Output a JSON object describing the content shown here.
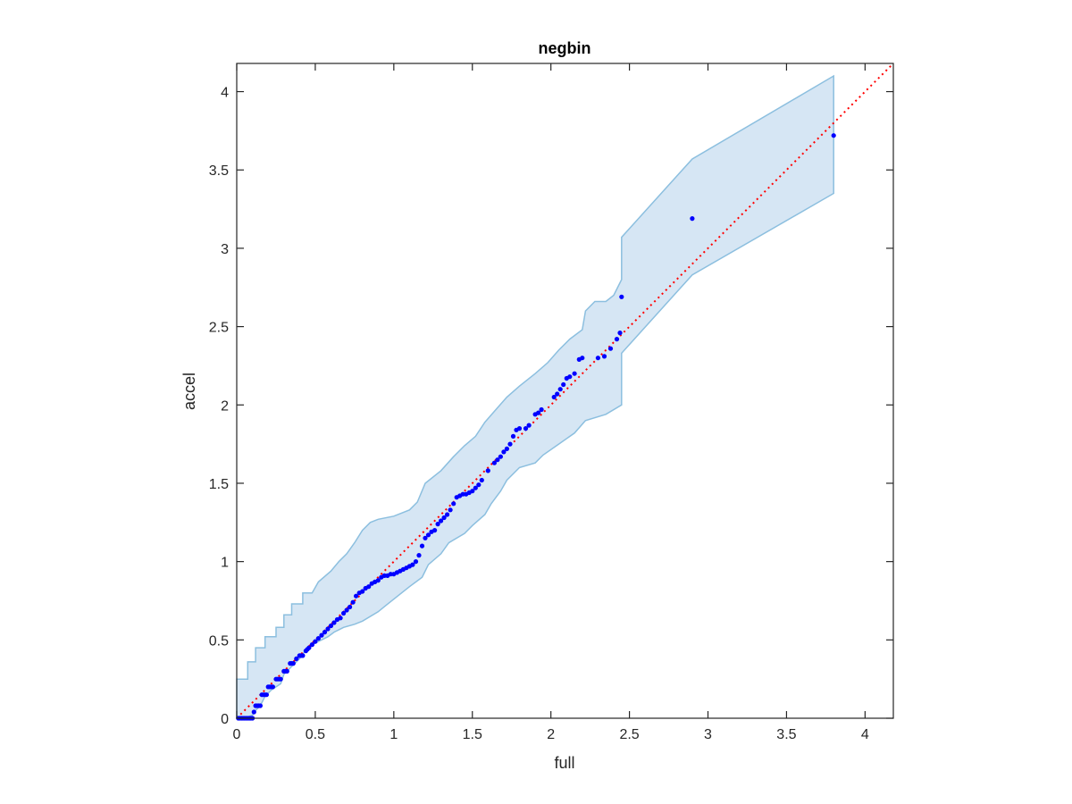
{
  "chart_data": {
    "type": "scatter",
    "title": "negbin",
    "xlabel": "full",
    "ylabel": "accel",
    "xlim": [
      0,
      4.18
    ],
    "ylim": [
      0,
      4.18
    ],
    "xticks": [
      0,
      0.5,
      1,
      1.5,
      2,
      2.5,
      3,
      3.5,
      4
    ],
    "yticks": [
      0,
      0.5,
      1,
      1.5,
      2,
      2.5,
      3,
      3.5,
      4
    ],
    "xtick_labels": [
      "0",
      "0.5",
      "1",
      "1.5",
      "2",
      "2.5",
      "3",
      "3.5",
      "4"
    ],
    "ytick_labels": [
      "0",
      "0.5",
      "1",
      "1.5",
      "2",
      "2.5",
      "3",
      "3.5",
      "4"
    ],
    "grid": false,
    "reference_line": {
      "x": [
        0,
        4.18
      ],
      "y": [
        0,
        4.18
      ],
      "color": "#ff0000",
      "style": "dotted"
    },
    "band": {
      "fill": "#d6e6f4",
      "stroke": "#8cbfdf",
      "upper": [
        [
          0,
          0.25
        ],
        [
          0.07,
          0.25
        ],
        [
          0.07,
          0.36
        ],
        [
          0.12,
          0.36
        ],
        [
          0.12,
          0.45
        ],
        [
          0.18,
          0.45
        ],
        [
          0.18,
          0.52
        ],
        [
          0.25,
          0.52
        ],
        [
          0.25,
          0.58
        ],
        [
          0.3,
          0.58
        ],
        [
          0.3,
          0.66
        ],
        [
          0.35,
          0.66
        ],
        [
          0.35,
          0.73
        ],
        [
          0.42,
          0.73
        ],
        [
          0.42,
          0.8
        ],
        [
          0.48,
          0.8
        ],
        [
          0.52,
          0.87
        ],
        [
          0.6,
          0.94
        ],
        [
          0.65,
          1.0
        ],
        [
          0.7,
          1.05
        ],
        [
          0.75,
          1.12
        ],
        [
          0.8,
          1.2
        ],
        [
          0.85,
          1.25
        ],
        [
          0.9,
          1.27
        ],
        [
          1.0,
          1.29
        ],
        [
          1.1,
          1.33
        ],
        [
          1.15,
          1.38
        ],
        [
          1.2,
          1.5
        ],
        [
          1.3,
          1.58
        ],
        [
          1.38,
          1.67
        ],
        [
          1.45,
          1.74
        ],
        [
          1.52,
          1.8
        ],
        [
          1.58,
          1.89
        ],
        [
          1.65,
          1.97
        ],
        [
          1.72,
          2.05
        ],
        [
          1.8,
          2.12
        ],
        [
          1.9,
          2.2
        ],
        [
          1.98,
          2.27
        ],
        [
          2.05,
          2.35
        ],
        [
          2.12,
          2.42
        ],
        [
          2.2,
          2.48
        ],
        [
          2.22,
          2.6
        ],
        [
          2.28,
          2.66
        ],
        [
          2.35,
          2.66
        ],
        [
          2.4,
          2.7
        ],
        [
          2.45,
          2.8
        ],
        [
          2.45,
          3.07
        ],
        [
          2.9,
          3.57
        ],
        [
          3.8,
          4.1
        ]
      ],
      "lower": [
        [
          3.8,
          3.35
        ],
        [
          2.9,
          2.83
        ],
        [
          2.45,
          2.33
        ],
        [
          2.45,
          2.0
        ],
        [
          2.35,
          1.94
        ],
        [
          2.22,
          1.9
        ],
        [
          2.15,
          1.82
        ],
        [
          2.05,
          1.75
        ],
        [
          1.95,
          1.68
        ],
        [
          1.9,
          1.63
        ],
        [
          1.8,
          1.6
        ],
        [
          1.72,
          1.52
        ],
        [
          1.68,
          1.45
        ],
        [
          1.62,
          1.37
        ],
        [
          1.58,
          1.3
        ],
        [
          1.5,
          1.23
        ],
        [
          1.45,
          1.18
        ],
        [
          1.35,
          1.12
        ],
        [
          1.3,
          1.05
        ],
        [
          1.22,
          0.98
        ],
        [
          1.18,
          0.9
        ],
        [
          1.1,
          0.84
        ],
        [
          1.05,
          0.8
        ],
        [
          0.95,
          0.72
        ],
        [
          0.9,
          0.68
        ],
        [
          0.8,
          0.62
        ],
        [
          0.75,
          0.6
        ],
        [
          0.68,
          0.58
        ],
        [
          0.62,
          0.55
        ],
        [
          0.58,
          0.52
        ],
        [
          0.5,
          0.48
        ],
        [
          0.45,
          0.45
        ],
        [
          0.4,
          0.38
        ],
        [
          0.35,
          0.33
        ],
        [
          0.3,
          0.28
        ],
        [
          0.28,
          0.22
        ],
        [
          0.22,
          0.18
        ],
        [
          0.18,
          0.14
        ],
        [
          0.15,
          0.08
        ],
        [
          0.12,
          0.05
        ],
        [
          0.1,
          0.02
        ],
        [
          0.05,
          0.0
        ],
        [
          0,
          0.0
        ]
      ]
    },
    "series": [
      {
        "color": "#0000ff",
        "points": [
          [
            0.01,
            0.0
          ],
          [
            0.02,
            0.0
          ],
          [
            0.03,
            0.0
          ],
          [
            0.04,
            0.0
          ],
          [
            0.05,
            0.0
          ],
          [
            0.06,
            0.0
          ],
          [
            0.07,
            0.0
          ],
          [
            0.08,
            0.0
          ],
          [
            0.09,
            0.0
          ],
          [
            0.1,
            0.0
          ],
          [
            0.11,
            0.04
          ],
          [
            0.12,
            0.08
          ],
          [
            0.13,
            0.08
          ],
          [
            0.14,
            0.08
          ],
          [
            0.15,
            0.08
          ],
          [
            0.16,
            0.15
          ],
          [
            0.17,
            0.15
          ],
          [
            0.18,
            0.15
          ],
          [
            0.19,
            0.15
          ],
          [
            0.2,
            0.2
          ],
          [
            0.21,
            0.2
          ],
          [
            0.22,
            0.2
          ],
          [
            0.23,
            0.2
          ],
          [
            0.25,
            0.25
          ],
          [
            0.26,
            0.25
          ],
          [
            0.27,
            0.25
          ],
          [
            0.28,
            0.25
          ],
          [
            0.3,
            0.3
          ],
          [
            0.31,
            0.3
          ],
          [
            0.32,
            0.3
          ],
          [
            0.34,
            0.35
          ],
          [
            0.35,
            0.35
          ],
          [
            0.36,
            0.35
          ],
          [
            0.38,
            0.38
          ],
          [
            0.4,
            0.4
          ],
          [
            0.41,
            0.4
          ],
          [
            0.42,
            0.4
          ],
          [
            0.44,
            0.43
          ],
          [
            0.45,
            0.44
          ],
          [
            0.46,
            0.45
          ],
          [
            0.48,
            0.47
          ],
          [
            0.5,
            0.49
          ],
          [
            0.52,
            0.51
          ],
          [
            0.54,
            0.53
          ],
          [
            0.56,
            0.55
          ],
          [
            0.58,
            0.57
          ],
          [
            0.6,
            0.59
          ],
          [
            0.62,
            0.61
          ],
          [
            0.64,
            0.63
          ],
          [
            0.66,
            0.64
          ],
          [
            0.68,
            0.67
          ],
          [
            0.7,
            0.69
          ],
          [
            0.72,
            0.71
          ],
          [
            0.74,
            0.74
          ],
          [
            0.76,
            0.78
          ],
          [
            0.78,
            0.8
          ],
          [
            0.8,
            0.81
          ],
          [
            0.82,
            0.83
          ],
          [
            0.84,
            0.84
          ],
          [
            0.86,
            0.86
          ],
          [
            0.88,
            0.87
          ],
          [
            0.9,
            0.88
          ],
          [
            0.92,
            0.9
          ],
          [
            0.94,
            0.91
          ],
          [
            0.96,
            0.91
          ],
          [
            0.98,
            0.92
          ],
          [
            1.0,
            0.92
          ],
          [
            1.02,
            0.93
          ],
          [
            1.04,
            0.94
          ],
          [
            1.06,
            0.95
          ],
          [
            1.08,
            0.96
          ],
          [
            1.1,
            0.97
          ],
          [
            1.12,
            0.98
          ],
          [
            1.14,
            1.0
          ],
          [
            1.16,
            1.04
          ],
          [
            1.18,
            1.1
          ],
          [
            1.2,
            1.15
          ],
          [
            1.22,
            1.17
          ],
          [
            1.24,
            1.19
          ],
          [
            1.26,
            1.2
          ],
          [
            1.28,
            1.24
          ],
          [
            1.3,
            1.26
          ],
          [
            1.32,
            1.28
          ],
          [
            1.34,
            1.3
          ],
          [
            1.36,
            1.33
          ],
          [
            1.38,
            1.37
          ],
          [
            1.4,
            1.41
          ],
          [
            1.42,
            1.42
          ],
          [
            1.44,
            1.43
          ],
          [
            1.46,
            1.43
          ],
          [
            1.48,
            1.44
          ],
          [
            1.5,
            1.45
          ],
          [
            1.52,
            1.47
          ],
          [
            1.54,
            1.49
          ],
          [
            1.56,
            1.52
          ],
          [
            1.6,
            1.58
          ],
          [
            1.64,
            1.63
          ],
          [
            1.66,
            1.65
          ],
          [
            1.68,
            1.67
          ],
          [
            1.7,
            1.7
          ],
          [
            1.72,
            1.72
          ],
          [
            1.74,
            1.75
          ],
          [
            1.76,
            1.8
          ],
          [
            1.78,
            1.84
          ],
          [
            1.8,
            1.85
          ],
          [
            1.84,
            1.85
          ],
          [
            1.86,
            1.87
          ],
          [
            1.9,
            1.94
          ],
          [
            1.92,
            1.95
          ],
          [
            1.94,
            1.97
          ],
          [
            2.02,
            2.05
          ],
          [
            2.04,
            2.07
          ],
          [
            2.06,
            2.1
          ],
          [
            2.08,
            2.13
          ],
          [
            2.1,
            2.17
          ],
          [
            2.12,
            2.18
          ],
          [
            2.15,
            2.2
          ],
          [
            2.18,
            2.29
          ],
          [
            2.2,
            2.3
          ],
          [
            2.3,
            2.3
          ],
          [
            2.34,
            2.31
          ],
          [
            2.38,
            2.36
          ],
          [
            2.42,
            2.42
          ],
          [
            2.44,
            2.46
          ],
          [
            2.45,
            2.69
          ],
          [
            2.9,
            3.19
          ],
          [
            3.8,
            3.72
          ]
        ]
      }
    ]
  }
}
